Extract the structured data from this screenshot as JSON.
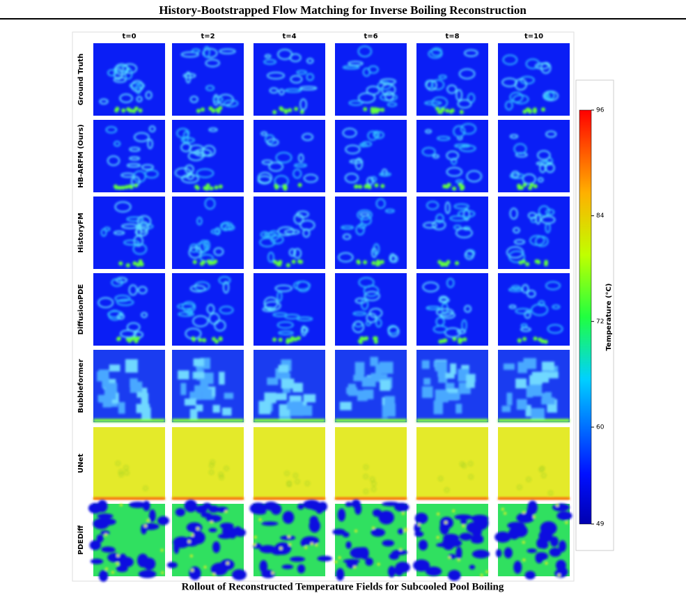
{
  "header": {
    "title": "History-Bootstrapped Flow Matching for Inverse Boiling Reconstruction"
  },
  "figure": {
    "columns": [
      "t=0",
      "t=2",
      "t=4",
      "t=6",
      "t=8",
      "t=10"
    ],
    "rows": [
      "Ground Truth",
      "HB-ARFM (Ours)",
      "HistoryFM",
      "DiffusionPDE",
      "Bubbleformer",
      "UNet",
      "PDEDiff"
    ],
    "colorbar": {
      "label": "Temperature (°C)",
      "lim": [
        49,
        96
      ],
      "ticks": [
        49,
        60,
        72,
        84,
        96
      ]
    }
  },
  "caption": "Rollout of Reconstructed Temperature Fields for Subcooled Pool Boiling"
}
